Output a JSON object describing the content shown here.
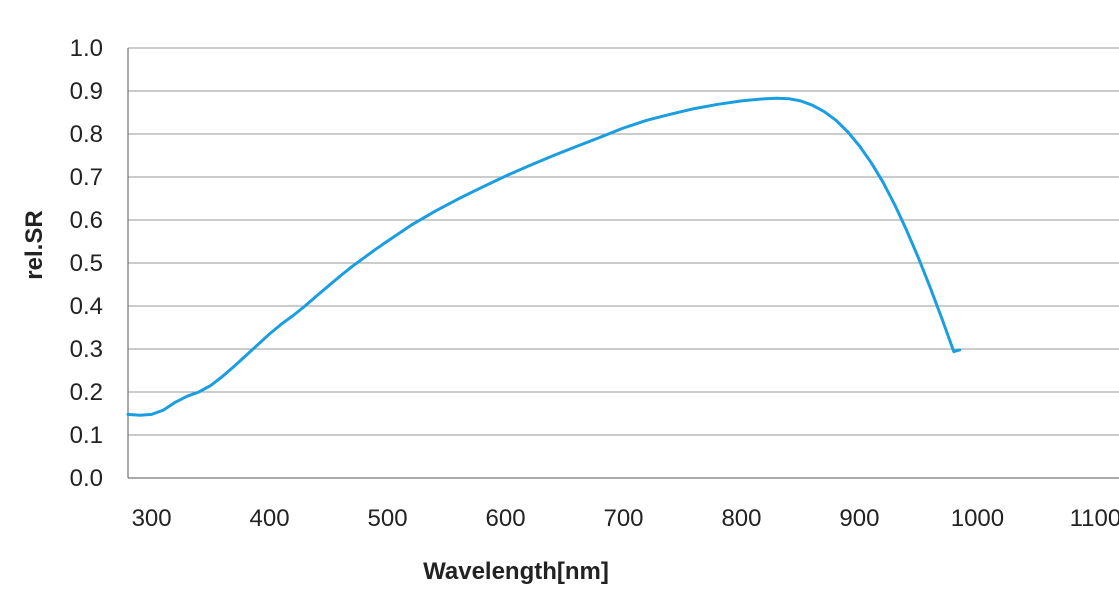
{
  "chart_data": {
    "type": "line",
    "xlabel": "Wavelength[nm]",
    "ylabel": "rel.SR",
    "xlim": [
      280,
      1120
    ],
    "ylim": [
      0,
      1.0
    ],
    "x_ticks": [
      300,
      400,
      500,
      600,
      700,
      800,
      900,
      1000,
      1100
    ],
    "y_ticks": [
      0.0,
      0.1,
      0.2,
      0.3,
      0.4,
      0.5,
      0.6,
      0.7,
      0.8,
      0.9,
      1.0
    ],
    "y_tick_labels": [
      "0.0",
      "0.1",
      "0.2",
      "0.3",
      "0.4",
      "0.5",
      "0.6",
      "0.7",
      "0.8",
      "0.9",
      "1.0"
    ],
    "grid": "horizontal",
    "legend": "none",
    "line_color": "#1a9ee0",
    "series": [
      {
        "x": [
          280,
          290,
          300,
          310,
          320,
          330,
          340,
          350,
          360,
          370,
          380,
          390,
          400,
          410,
          420,
          430,
          440,
          450,
          460,
          470,
          480,
          490,
          500,
          520,
          540,
          560,
          580,
          600,
          620,
          640,
          660,
          680,
          700,
          720,
          740,
          760,
          780,
          800,
          820,
          830,
          840,
          850,
          860,
          870,
          880,
          890,
          900,
          910,
          920,
          930,
          940,
          950,
          960,
          970,
          980,
          985
        ],
        "y": [
          0.148,
          0.146,
          0.148,
          0.158,
          0.176,
          0.19,
          0.2,
          0.215,
          0.236,
          0.26,
          0.285,
          0.31,
          0.335,
          0.358,
          0.378,
          0.4,
          0.424,
          0.447,
          0.47,
          0.492,
          0.512,
          0.532,
          0.551,
          0.588,
          0.62,
          0.649,
          0.676,
          0.702,
          0.726,
          0.749,
          0.771,
          0.792,
          0.814,
          0.832,
          0.846,
          0.859,
          0.869,
          0.877,
          0.882,
          0.883,
          0.882,
          0.877,
          0.867,
          0.852,
          0.832,
          0.805,
          0.772,
          0.733,
          0.688,
          0.635,
          0.576,
          0.512,
          0.443,
          0.37,
          0.294,
          0.298
        ]
      }
    ]
  }
}
